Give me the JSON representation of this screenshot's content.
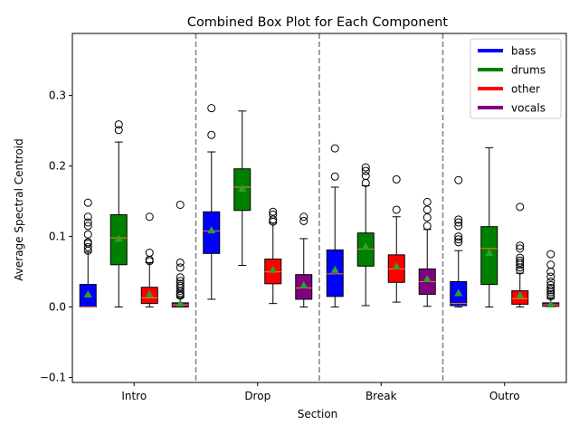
{
  "chart_data": {
    "type": "box",
    "title": "Combined Box Plot for Each Component",
    "xlabel": "Section",
    "ylabel": "Average Spectral Centroid",
    "ylim": [
      -0.107,
      0.388
    ],
    "yticks": [
      -0.1,
      0.0,
      0.1,
      0.2,
      0.3
    ],
    "ytick_labels": [
      "−0.1",
      "0.0",
      "0.1",
      "0.2",
      "0.3"
    ],
    "grid": false,
    "legend_position": "top-right",
    "sections": [
      "Intro",
      "Drop",
      "Break",
      "Outro"
    ],
    "series": [
      {
        "name": "bass",
        "color": "#0000ff"
      },
      {
        "name": "drums",
        "color": "#008000"
      },
      {
        "name": "other",
        "color": "#ff0000"
      },
      {
        "name": "vocals",
        "color": "#800080"
      }
    ],
    "boxes": [
      {
        "section": "Intro",
        "component": "bass",
        "min": 0.0,
        "q1": 0.0,
        "median": 0.0,
        "q3": 0.032,
        "max": 0.078,
        "mean": 0.018,
        "outliers": [
          0.08,
          0.085,
          0.09,
          0.092,
          0.103,
          0.115,
          0.12,
          0.128,
          0.148
        ]
      },
      {
        "section": "Intro",
        "component": "drums",
        "min": 0.0,
        "q1": 0.06,
        "median": 0.098,
        "q3": 0.131,
        "max": 0.234,
        "mean": 0.097,
        "outliers": [
          0.251,
          0.259
        ]
      },
      {
        "section": "Intro",
        "component": "other",
        "min": 0.0,
        "q1": 0.005,
        "median": 0.013,
        "q3": 0.028,
        "max": 0.063,
        "mean": 0.018,
        "outliers": [
          0.065,
          0.067,
          0.077,
          0.128
        ]
      },
      {
        "section": "Intro",
        "component": "vocals",
        "min": 0.0,
        "q1": 0.0,
        "median": 0.003,
        "q3": 0.006,
        "max": 0.013,
        "mean": 0.005,
        "outliers": [
          0.016,
          0.018,
          0.02,
          0.023,
          0.027,
          0.03,
          0.033,
          0.037,
          0.042,
          0.056,
          0.063,
          0.145
        ]
      },
      {
        "section": "Drop",
        "component": "bass",
        "min": 0.011,
        "q1": 0.076,
        "median": 0.108,
        "q3": 0.135,
        "max": 0.22,
        "mean": 0.109,
        "outliers": [
          0.244,
          0.282
        ]
      },
      {
        "section": "Drop",
        "component": "drums",
        "min": 0.059,
        "q1": 0.137,
        "median": 0.17,
        "q3": 0.196,
        "max": 0.278,
        "mean": 0.168,
        "outliers": []
      },
      {
        "section": "Drop",
        "component": "other",
        "min": 0.005,
        "q1": 0.033,
        "median": 0.05,
        "q3": 0.068,
        "max": 0.119,
        "mean": 0.053,
        "outliers": [
          0.121,
          0.124,
          0.131,
          0.135
        ]
      },
      {
        "section": "Drop",
        "component": "vocals",
        "min": 0.0,
        "q1": 0.011,
        "median": 0.027,
        "q3": 0.046,
        "max": 0.097,
        "mean": 0.031,
        "outliers": [
          0.122,
          0.128
        ]
      },
      {
        "section": "Break",
        "component": "bass",
        "min": 0.0,
        "q1": 0.015,
        "median": 0.047,
        "q3": 0.081,
        "max": 0.17,
        "mean": 0.053,
        "outliers": [
          0.185,
          0.225
        ]
      },
      {
        "section": "Break",
        "component": "drums",
        "min": 0.002,
        "q1": 0.058,
        "median": 0.082,
        "q3": 0.105,
        "max": 0.172,
        "mean": 0.086,
        "outliers": [
          0.176,
          0.186,
          0.193,
          0.198
        ]
      },
      {
        "section": "Break",
        "component": "other",
        "min": 0.007,
        "q1": 0.035,
        "median": 0.054,
        "q3": 0.074,
        "max": 0.128,
        "mean": 0.058,
        "outliers": [
          0.138,
          0.181
        ]
      },
      {
        "section": "Break",
        "component": "vocals",
        "min": 0.001,
        "q1": 0.018,
        "median": 0.036,
        "q3": 0.054,
        "max": 0.11,
        "mean": 0.04,
        "outliers": [
          0.115,
          0.127,
          0.138,
          0.149
        ]
      },
      {
        "section": "Outro",
        "component": "bass",
        "min": 0.0,
        "q1": 0.002,
        "median": 0.005,
        "q3": 0.036,
        "max": 0.08,
        "mean": 0.02,
        "outliers": [
          0.092,
          0.096,
          0.1,
          0.115,
          0.12,
          0.124,
          0.18
        ]
      },
      {
        "section": "Outro",
        "component": "drums",
        "min": 0.0,
        "q1": 0.032,
        "median": 0.083,
        "q3": 0.114,
        "max": 0.226,
        "mean": 0.077,
        "outliers": []
      },
      {
        "section": "Outro",
        "component": "other",
        "min": 0.0,
        "q1": 0.004,
        "median": 0.012,
        "q3": 0.023,
        "max": 0.048,
        "mean": 0.017,
        "outliers": [
          0.052,
          0.056,
          0.06,
          0.063,
          0.066,
          0.07,
          0.083,
          0.087,
          0.142
        ]
      },
      {
        "section": "Outro",
        "component": "vocals",
        "min": 0.0,
        "q1": 0.001,
        "median": 0.003,
        "q3": 0.006,
        "max": 0.012,
        "mean": 0.004,
        "outliers": [
          0.015,
          0.018,
          0.021,
          0.024,
          0.027,
          0.031,
          0.036,
          0.043,
          0.05,
          0.06,
          0.075
        ]
      }
    ]
  }
}
